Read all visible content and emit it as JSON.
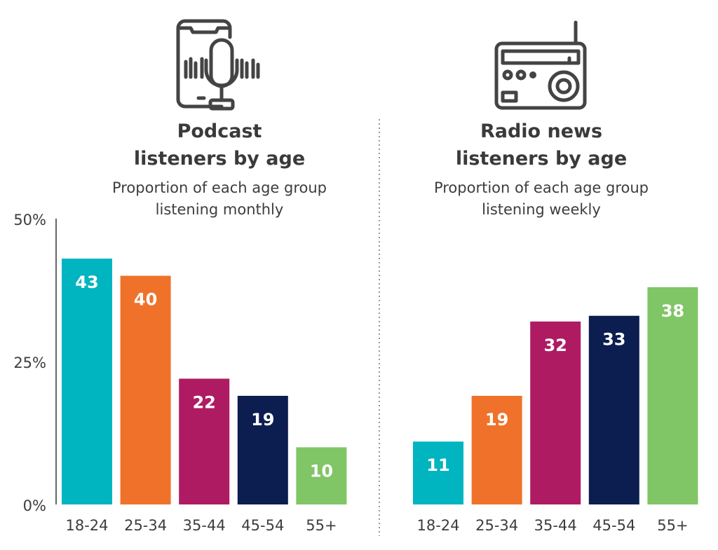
{
  "icons": {
    "left": "smartphone-microphone-icon",
    "right": "radio-icon"
  },
  "colors": {
    "teal": "#00b5c0",
    "orange": "#f0722a",
    "magenta": "#af1b63",
    "navy": "#0c1d4f",
    "green": "#80c566",
    "text": "#3d3d3d"
  },
  "chart_data": [
    {
      "type": "bar",
      "title_line1": "Podcast",
      "title_line2": "listeners by age",
      "subtitle_line1": "Proportion of each age group",
      "subtitle_line2": "listening monthly",
      "categories": [
        "18-24",
        "25-34",
        "35-44",
        "45-54",
        "55+"
      ],
      "values": [
        43,
        40,
        22,
        19,
        10
      ],
      "data_labels": [
        "43",
        "40",
        "22",
        "19",
        "10"
      ],
      "bar_colors": [
        "#00b5c0",
        "#f0722a",
        "#af1b63",
        "#0c1d4f",
        "#80c566"
      ],
      "yticks": [
        0,
        25,
        50
      ],
      "ytick_labels": [
        "0%",
        "25%",
        "50%"
      ],
      "ylim": [
        0,
        50
      ],
      "grid": false
    },
    {
      "type": "bar",
      "title_line1": "Radio news",
      "title_line2": "listeners by age",
      "subtitle_line1": "Proportion of each age group",
      "subtitle_line2": "listening weekly",
      "categories": [
        "18-24",
        "25-34",
        "35-44",
        "45-54",
        "55+"
      ],
      "values": [
        11,
        19,
        32,
        33,
        38
      ],
      "data_labels": [
        "11",
        "19",
        "32",
        "33",
        "38"
      ],
      "bar_colors": [
        "#00b5c0",
        "#f0722a",
        "#af1b63",
        "#0c1d4f",
        "#80c566"
      ],
      "ylim": [
        0,
        50
      ],
      "grid": false
    }
  ]
}
